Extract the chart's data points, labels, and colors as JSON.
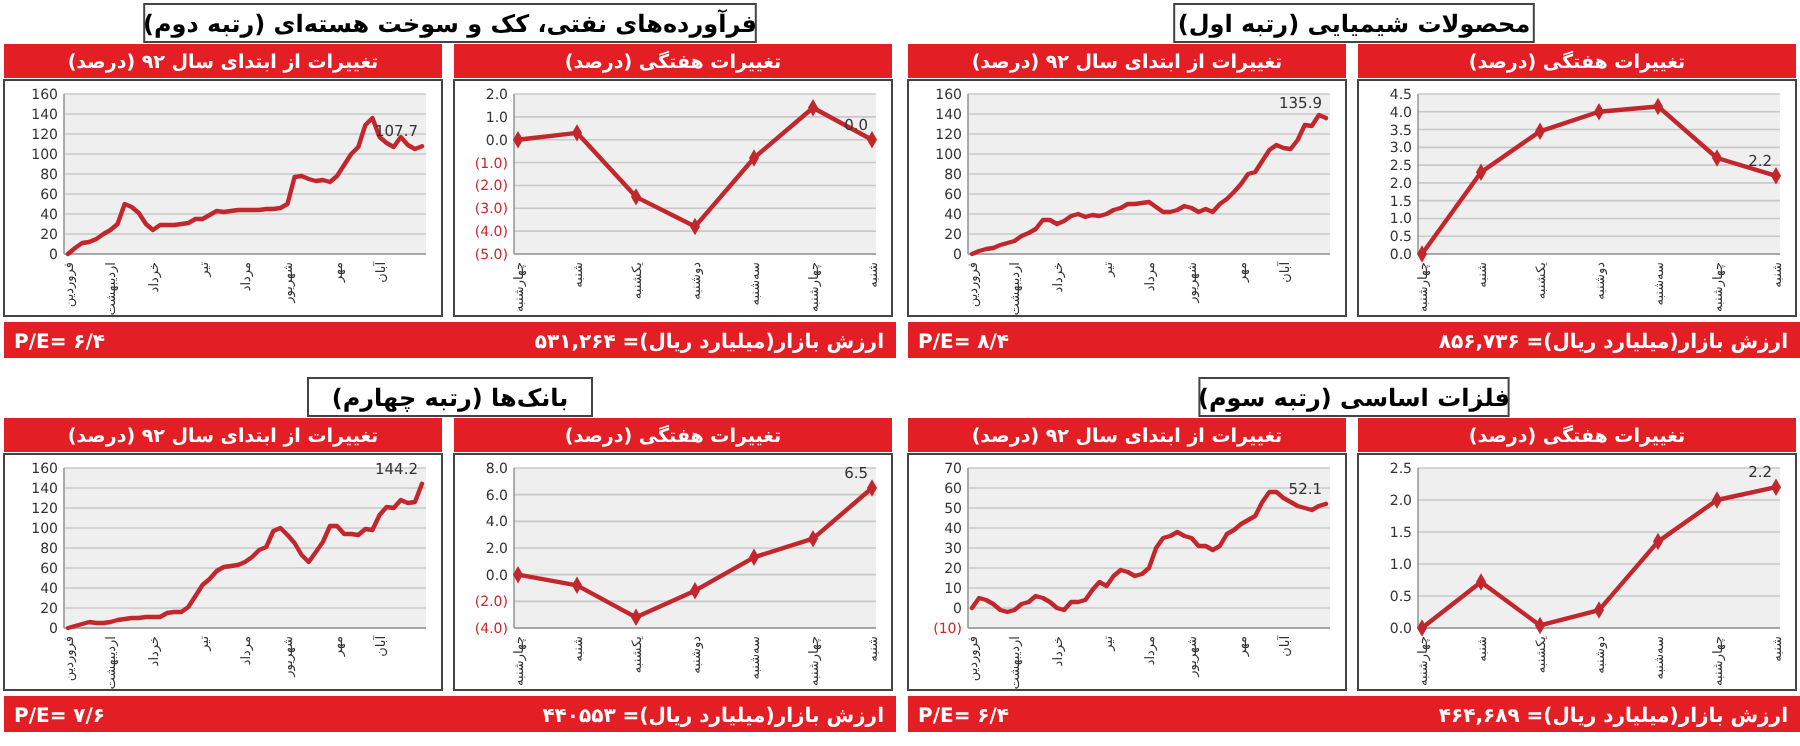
{
  "chart_data": [
    {
      "type": "line",
      "title": "تغییرات از ابتدای سال ۹۲ (درصد)",
      "annotations": [
        "فرآورده‌های نفتی، کک و سوخت هسته‌ای (رتبه دوم)",
        "ارزش بازار(میلیارد ریال)= ۵۳۱,۲۶۴",
        "P/E= ۶/۴"
      ],
      "categories": [
        "فروردین",
        null,
        null,
        null,
        null,
        null,
        "اردیبهشت",
        null,
        null,
        null,
        null,
        null,
        "خرداد",
        null,
        null,
        null,
        null,
        null,
        null,
        "تیر",
        null,
        null,
        null,
        null,
        null,
        "مرداد",
        null,
        null,
        null,
        null,
        null,
        "شهریور",
        null,
        null,
        null,
        null,
        null,
        null,
        "مهر",
        null,
        null,
        null,
        null,
        null,
        "آبان",
        null,
        null,
        null,
        null,
        null,
        null
      ],
      "ylim": [
        0,
        160
      ],
      "yticks": [
        0,
        20,
        40,
        60,
        80,
        100,
        120,
        140,
        160
      ],
      "grid": "y",
      "marker": "none",
      "line_style": "solid",
      "series": [
        {
          "color": "#c1272d",
          "values": [
            0,
            6,
            11,
            12,
            15,
            20,
            24,
            30,
            50,
            47,
            41,
            30,
            24,
            29,
            29,
            29,
            30,
            31,
            35,
            35,
            39,
            43,
            42,
            43,
            44,
            44,
            44,
            44,
            45,
            45,
            46,
            50,
            77,
            78,
            75,
            73,
            74,
            72,
            78,
            89,
            100,
            107,
            129,
            136,
            117,
            111,
            107,
            117,
            109,
            105,
            107.7
          ],
          "value_labels": [
            null,
            null,
            null,
            null,
            null,
            null,
            null,
            null,
            null,
            null,
            null,
            null,
            null,
            null,
            null,
            null,
            null,
            null,
            null,
            null,
            null,
            null,
            null,
            null,
            null,
            null,
            null,
            null,
            null,
            null,
            null,
            null,
            null,
            null,
            null,
            null,
            null,
            null,
            null,
            null,
            null,
            null,
            null,
            null,
            null,
            null,
            null,
            null,
            null,
            null,
            "107.7"
          ]
        }
      ]
    },
    {
      "type": "line",
      "title": "تغییرات هفتگی (درصد)",
      "categories": [
        "چهارشنبه",
        "شنبه",
        "یکشنبه",
        "دوشنبه",
        "سه‌شنبه",
        "چهارشنبه",
        "شنبه"
      ],
      "ylim": [
        -5,
        2
      ],
      "yticks": [
        {
          "value": -5,
          "label": "(5.0)"
        },
        {
          "value": -4,
          "label": "(4.0)"
        },
        {
          "value": -3,
          "label": "(3.0)"
        },
        {
          "value": -2,
          "label": "(2.0)"
        },
        {
          "value": -1,
          "label": "(1.0)"
        },
        {
          "value": 0,
          "label": "0.0"
        },
        {
          "value": 1,
          "label": "1.0"
        },
        {
          "value": 2,
          "label": "2.0"
        }
      ],
      "grid": "y",
      "marker": "diamond",
      "line_style": "solid",
      "series": [
        {
          "color": "#c1272d",
          "values": [
            0,
            0.3,
            -2.5,
            -3.8,
            -0.8,
            1.4,
            0
          ],
          "value_labels": [
            null,
            null,
            null,
            null,
            null,
            null,
            "0.0"
          ]
        }
      ]
    },
    {
      "type": "line",
      "title": "تغییرات از ابتدای سال ۹۲ (درصد)",
      "annotations": [
        "محصولات شیمیایی (رتبه اول)",
        "ارزش بازار(میلیارد ریال)= ۸۵۶,۷۳۶",
        "P/E= ۸/۴"
      ],
      "categories": [
        "فروردین",
        null,
        null,
        null,
        null,
        null,
        "اردیبهشت",
        null,
        null,
        null,
        null,
        null,
        "خرداد",
        null,
        null,
        null,
        null,
        null,
        null,
        "تیر",
        null,
        null,
        null,
        null,
        null,
        "مرداد",
        null,
        null,
        null,
        null,
        null,
        "شهریور",
        null,
        null,
        null,
        null,
        null,
        null,
        "مهر",
        null,
        null,
        null,
        null,
        null,
        "آبان",
        null,
        null,
        null,
        null,
        null,
        null
      ],
      "ylim": [
        0,
        160
      ],
      "yticks": [
        0,
        20,
        40,
        60,
        80,
        100,
        120,
        140,
        160
      ],
      "grid": "y",
      "marker": "none",
      "line_style": "solid",
      "series": [
        {
          "color": "#c1272d",
          "values": [
            0,
            3,
            5,
            6,
            9,
            11,
            13,
            18,
            21,
            25,
            34,
            34,
            30,
            33,
            38,
            40,
            37,
            39,
            38,
            40,
            44,
            46,
            50,
            50,
            51,
            52,
            47,
            42,
            42,
            44,
            48,
            46,
            42,
            45,
            42,
            50,
            55,
            62,
            70,
            80,
            82,
            93,
            104,
            109,
            106,
            105,
            114,
            129,
            128,
            139,
            135.9
          ],
          "value_labels": [
            null,
            null,
            null,
            null,
            null,
            null,
            null,
            null,
            null,
            null,
            null,
            null,
            null,
            null,
            null,
            null,
            null,
            null,
            null,
            null,
            null,
            null,
            null,
            null,
            null,
            null,
            null,
            null,
            null,
            null,
            null,
            null,
            null,
            null,
            null,
            null,
            null,
            null,
            null,
            null,
            null,
            null,
            null,
            null,
            null,
            null,
            null,
            null,
            null,
            null,
            "135.9"
          ]
        }
      ]
    },
    {
      "type": "line",
      "title": "تغییرات هفتگی (درصد)",
      "categories": [
        "چهارشنبه",
        "شنبه",
        "یکشنبه",
        "دوشنبه",
        "سه‌شنبه",
        "چهارشنبه",
        "شنبه"
      ],
      "ylim": [
        0,
        4.5
      ],
      "yticks": [
        {
          "value": 0,
          "label": "0.0"
        },
        {
          "value": 0.5,
          "label": "0.5"
        },
        {
          "value": 1,
          "label": "1.0"
        },
        {
          "value": 1.5,
          "label": "1.5"
        },
        {
          "value": 2,
          "label": "2.0"
        },
        {
          "value": 2.5,
          "label": "2.5"
        },
        {
          "value": 3,
          "label": "3.0"
        },
        {
          "value": 3.5,
          "label": "3.5"
        },
        {
          "value": 4,
          "label": "4.0"
        },
        {
          "value": 4.5,
          "label": "4.5"
        }
      ],
      "grid": "y",
      "marker": "diamond",
      "line_style": "solid",
      "series": [
        {
          "color": "#c1272d",
          "values": [
            0,
            2.3,
            3.45,
            4,
            4.15,
            2.7,
            2.2
          ],
          "value_labels": [
            null,
            null,
            null,
            null,
            null,
            null,
            "2.2"
          ]
        }
      ]
    },
    {
      "type": "line",
      "title": "تغییرات از ابتدای سال ۹۲ (درصد)",
      "annotations": [
        "بانک‌ها (رتبه چهارم)",
        "ارزش بازار(میلیارد ریال)= ۴۴۰۵۵۳",
        "P/E= ۷/۶"
      ],
      "categories": [
        "فروردین",
        null,
        null,
        null,
        null,
        null,
        "اردیبهشت",
        null,
        null,
        null,
        null,
        null,
        "خرداد",
        null,
        null,
        null,
        null,
        null,
        null,
        "تیر",
        null,
        null,
        null,
        null,
        null,
        "مرداد",
        null,
        null,
        null,
        null,
        null,
        "شهریور",
        null,
        null,
        null,
        null,
        null,
        null,
        "مهر",
        null,
        null,
        null,
        null,
        null,
        "آبان",
        null,
        null,
        null,
        null,
        null,
        null
      ],
      "ylim": [
        0,
        160
      ],
      "yticks": [
        0,
        20,
        40,
        60,
        80,
        100,
        120,
        140,
        160
      ],
      "grid": "y",
      "marker": "none",
      "line_style": "solid",
      "series": [
        {
          "color": "#c1272d",
          "values": [
            0,
            2,
            4,
            6,
            5,
            5,
            6,
            8,
            9,
            10,
            10,
            11,
            11,
            11,
            15,
            16,
            16,
            21,
            32,
            43,
            49,
            57,
            61,
            62,
            63,
            66,
            71,
            78,
            81,
            97,
            100,
            93,
            85,
            73,
            66,
            76,
            86,
            102,
            102,
            94,
            94,
            93,
            99,
            98,
            113,
            121,
            120,
            128,
            125,
            126,
            144.2
          ],
          "value_labels": [
            null,
            null,
            null,
            null,
            null,
            null,
            null,
            null,
            null,
            null,
            null,
            null,
            null,
            null,
            null,
            null,
            null,
            null,
            null,
            null,
            null,
            null,
            null,
            null,
            null,
            null,
            null,
            null,
            null,
            null,
            null,
            null,
            null,
            null,
            null,
            null,
            null,
            null,
            null,
            null,
            null,
            null,
            null,
            null,
            null,
            null,
            null,
            null,
            null,
            null,
            "144.2"
          ]
        }
      ]
    },
    {
      "type": "line",
      "title": "تغییرات هفتگی (درصد)",
      "categories": [
        "چهارشنبه",
        "شنبه",
        "یکشنبه",
        "دوشنبه",
        "سه‌شنبه",
        "چهارشنبه",
        "شنبه"
      ],
      "ylim": [
        -4,
        8
      ],
      "yticks": [
        {
          "value": -4,
          "label": "(4.0)"
        },
        {
          "value": -2,
          "label": "(2.0)"
        },
        {
          "value": 0,
          "label": "0.0"
        },
        {
          "value": 2,
          "label": "2.0"
        },
        {
          "value": 4,
          "label": "4.0"
        },
        {
          "value": 6,
          "label": "6.0"
        },
        {
          "value": 8,
          "label": "8.0"
        }
      ],
      "grid": "y",
      "marker": "diamond",
      "line_style": "solid",
      "series": [
        {
          "color": "#c1272d",
          "values": [
            0,
            -0.8,
            -3.2,
            -1.2,
            1.3,
            2.7,
            6.5
          ],
          "value_labels": [
            null,
            null,
            null,
            null,
            null,
            null,
            "6.5"
          ]
        }
      ]
    },
    {
      "type": "line",
      "title": "تغییرات از ابتدای سال ۹۲ (درصد)",
      "annotations": [
        "فلزات اساسی (رتبه سوم)",
        "ارزش بازار(میلیارد ریال)= ۴۶۴,۶۸۹",
        "P/E= ۶/۴"
      ],
      "categories": [
        "فروردین",
        null,
        null,
        null,
        null,
        null,
        "اردیبهشت",
        null,
        null,
        null,
        null,
        null,
        "خرداد",
        null,
        null,
        null,
        null,
        null,
        null,
        "تیر",
        null,
        null,
        null,
        null,
        null,
        "مرداد",
        null,
        null,
        null,
        null,
        null,
        "شهریور",
        null,
        null,
        null,
        null,
        null,
        null,
        "مهر",
        null,
        null,
        null,
        null,
        null,
        "آبان",
        null,
        null,
        null,
        null,
        null,
        null
      ],
      "ylim": [
        -10,
        70
      ],
      "yticks": [
        {
          "value": -10,
          "label": "(10)"
        },
        0,
        10,
        20,
        30,
        40,
        50,
        60,
        70
      ],
      "grid": "y",
      "marker": "none",
      "line_style": "solid",
      "series": [
        {
          "color": "#c1272d",
          "values": [
            0,
            5,
            4,
            2,
            -1,
            -2,
            -1,
            2,
            3,
            6,
            5,
            3,
            0,
            -1,
            3,
            3,
            4,
            9,
            13,
            11,
            16,
            19,
            18,
            16,
            17,
            20,
            30,
            35,
            36,
            38,
            36,
            35,
            31,
            31,
            29,
            31,
            37,
            39,
            42,
            44,
            46,
            53,
            58,
            58,
            55,
            53,
            51,
            50,
            49,
            51,
            52.1
          ],
          "value_labels": [
            null,
            null,
            null,
            null,
            null,
            null,
            null,
            null,
            null,
            null,
            null,
            null,
            null,
            null,
            null,
            null,
            null,
            null,
            null,
            null,
            null,
            null,
            null,
            null,
            null,
            null,
            null,
            null,
            null,
            null,
            null,
            null,
            null,
            null,
            null,
            null,
            null,
            null,
            null,
            null,
            null,
            null,
            null,
            null,
            null,
            null,
            null,
            null,
            null,
            null,
            "52.1"
          ]
        }
      ]
    },
    {
      "type": "line",
      "title": "تغییرات هفتگی (درصد)",
      "categories": [
        "چهارشنبه",
        "شنبه",
        "یکشنبه",
        "دوشنبه",
        "سه‌شنبه",
        "چهارشنبه",
        "شنبه"
      ],
      "ylim": [
        0,
        2.5
      ],
      "yticks": [
        {
          "value": 0,
          "label": "0.0"
        },
        {
          "value": 0.5,
          "label": "0.5"
        },
        {
          "value": 1,
          "label": "1.0"
        },
        {
          "value": 1.5,
          "label": "1.5"
        },
        {
          "value": 2,
          "label": "2.0"
        },
        {
          "value": 2.5,
          "label": "2.5"
        }
      ],
      "grid": "y",
      "marker": "diamond",
      "line_style": "solid",
      "series": [
        {
          "color": "#c1272d",
          "values": [
            0,
            0.72,
            0.04,
            0.28,
            1.35,
            2,
            2.2
          ],
          "value_labels": [
            null,
            null,
            null,
            null,
            null,
            null,
            "2.2"
          ]
        }
      ]
    }
  ]
}
